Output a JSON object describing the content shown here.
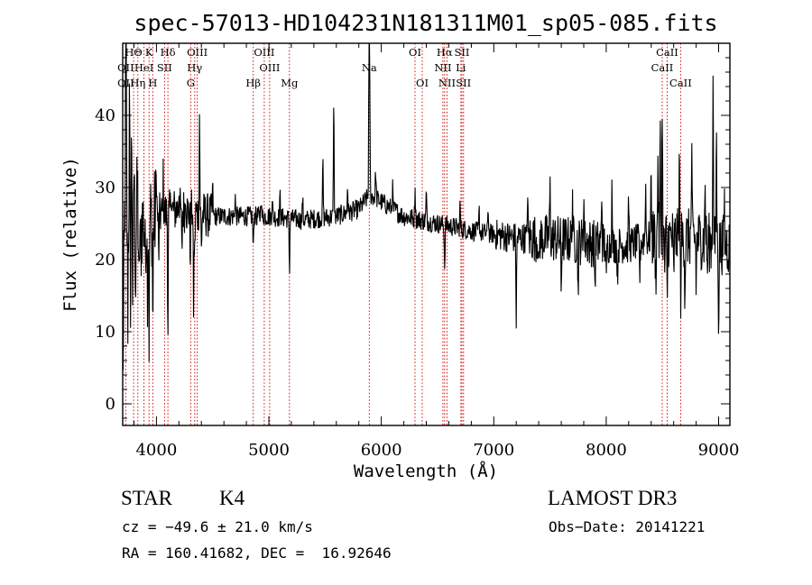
{
  "chart_data": {
    "type": "line",
    "title": "spec-57013-HD104231N181311M01_sp05-085.fits",
    "xlabel": "Wavelength (Å)",
    "ylabel": "Flux (relative)",
    "xlim": [
      3700,
      9100
    ],
    "ylim": [
      -3,
      50
    ],
    "x_ticks": [
      4000,
      5000,
      6000,
      7000,
      8000,
      9000
    ],
    "y_ticks": [
      0,
      10,
      20,
      30,
      40
    ],
    "series": [
      {
        "name": "spectrum",
        "continuum": [
          [
            3700,
            26
          ],
          [
            3850,
            25
          ],
          [
            4000,
            26
          ],
          [
            4200,
            27
          ],
          [
            4500,
            26
          ],
          [
            5000,
            26
          ],
          [
            5300,
            25.5
          ],
          [
            5600,
            26
          ],
          [
            5800,
            27
          ],
          [
            5900,
            29
          ],
          [
            6000,
            28
          ],
          [
            6200,
            26
          ],
          [
            6500,
            25
          ],
          [
            6800,
            24
          ],
          [
            7000,
            23.5
          ],
          [
            7200,
            23
          ],
          [
            7500,
            23
          ],
          [
            7800,
            22.5
          ],
          [
            8000,
            22
          ],
          [
            8200,
            22
          ],
          [
            8400,
            23
          ],
          [
            8600,
            23
          ],
          [
            8800,
            23
          ],
          [
            9000,
            22
          ],
          [
            9100,
            22
          ]
        ],
        "features": [
          [
            3705,
            -20
          ],
          [
            3712,
            -8
          ],
          [
            3725,
            10
          ],
          [
            3730,
            20
          ],
          [
            3745,
            -12
          ],
          [
            3760,
            14
          ],
          [
            3768,
            -10
          ],
          [
            3780,
            12
          ],
          [
            3790,
            -14
          ],
          [
            3800,
            8
          ],
          [
            3815,
            -8
          ],
          [
            3830,
            6
          ],
          [
            3845,
            -12
          ],
          [
            3860,
            -6
          ],
          [
            3900,
            -6
          ],
          [
            3920,
            -8
          ],
          [
            3935,
            -16
          ],
          [
            3968,
            -15
          ],
          [
            4000,
            6
          ],
          [
            4020,
            -6
          ],
          [
            4060,
            5
          ],
          [
            4102,
            -16
          ],
          [
            4130,
            4
          ],
          [
            4200,
            3
          ],
          [
            4226,
            -6
          ],
          [
            4260,
            3
          ],
          [
            4300,
            -6
          ],
          [
            4330,
            -13
          ],
          [
            4340,
            -6
          ],
          [
            4383,
            14
          ],
          [
            4400,
            -5
          ],
          [
            4500,
            4
          ],
          [
            4700,
            3
          ],
          [
            4861,
            -5
          ],
          [
            4930,
            3
          ],
          [
            5030,
            3
          ],
          [
            5100,
            3
          ],
          [
            5183,
            -7
          ],
          [
            5300,
            3
          ],
          [
            5480,
            8
          ],
          [
            5577,
            17
          ],
          [
            5700,
            4
          ],
          [
            5890,
            17
          ],
          [
            5896,
            20
          ],
          [
            5950,
            4
          ],
          [
            6100,
            3
          ],
          [
            6300,
            5
          ],
          [
            6400,
            4
          ],
          [
            6563,
            -6
          ],
          [
            6700,
            3
          ],
          [
            6870,
            3
          ],
          [
            6950,
            4
          ],
          [
            7200,
            -12
          ],
          [
            7300,
            6
          ],
          [
            7400,
            -6
          ],
          [
            7500,
            7
          ],
          [
            7600,
            -7
          ],
          [
            7700,
            7
          ],
          [
            7750,
            -7
          ],
          [
            7800,
            7
          ],
          [
            7900,
            -6
          ],
          [
            7960,
            8
          ],
          [
            8000,
            -6
          ],
          [
            8050,
            8
          ],
          [
            8100,
            -5
          ],
          [
            8200,
            6
          ],
          [
            8300,
            -5
          ],
          [
            8350,
            8
          ],
          [
            8400,
            10
          ],
          [
            8440,
            -6
          ],
          [
            8460,
            12
          ],
          [
            8480,
            14
          ],
          [
            8498,
            19
          ],
          [
            8520,
            -4
          ],
          [
            8542,
            -9
          ],
          [
            8600,
            -6
          ],
          [
            8650,
            11
          ],
          [
            8662,
            -8
          ],
          [
            8700,
            -8
          ],
          [
            8760,
            11
          ],
          [
            8800,
            -6
          ],
          [
            8880,
            8
          ],
          [
            8900,
            -5
          ],
          [
            8950,
            26
          ],
          [
            8980,
            16
          ],
          [
            9000,
            -10
          ],
          [
            9050,
            6
          ]
        ]
      }
    ],
    "line_markers": [
      {
        "label": "HΘ",
        "x": 3797,
        "row": 0,
        "dx": 0
      },
      {
        "label": "K",
        "x": 3934,
        "row": 0,
        "dx": 0
      },
      {
        "label": "Hδ",
        "x": 4102,
        "row": 0,
        "dx": 0
      },
      {
        "label": "OIII",
        "x": 4363,
        "row": 0,
        "dx": 0
      },
      {
        "label": "OIII",
        "x": 4959,
        "row": 0,
        "dx": 0
      },
      {
        "label": "OI",
        "x": 6300,
        "row": 0,
        "dx": 0
      },
      {
        "label": "Hα",
        "x": 6563,
        "row": 0,
        "dx": 0
      },
      {
        "label": "SII",
        "x": 6717,
        "row": 0,
        "dx": 0
      },
      {
        "label": "CaII",
        "x": 8542,
        "row": 0,
        "dx": 0
      },
      {
        "label": "OII",
        "x": 3727,
        "row": 1,
        "dx": 0
      },
      {
        "label": "HeI",
        "x": 3889,
        "row": 1,
        "dx": 0
      },
      {
        "label": "SII",
        "x": 4072,
        "row": 1,
        "dx": 0
      },
      {
        "label": "Hγ",
        "x": 4340,
        "row": 1,
        "dx": 0
      },
      {
        "label": "OIII",
        "x": 5007,
        "row": 1,
        "dx": 0
      },
      {
        "label": "Na",
        "x": 5893,
        "row": 1,
        "dx": 0
      },
      {
        "label": "NII",
        "x": 6548,
        "row": 1,
        "dx": 0
      },
      {
        "label": "Li",
        "x": 6707,
        "row": 1,
        "dx": 0
      },
      {
        "label": "CaII",
        "x": 8498,
        "row": 1,
        "dx": 0
      },
      {
        "label": "OII",
        "x": 3727,
        "row": 2,
        "dx": 0
      },
      {
        "label": "Hη",
        "x": 3835,
        "row": 2,
        "dx": 0
      },
      {
        "label": "H",
        "x": 3968,
        "row": 2,
        "dx": 0
      },
      {
        "label": "G",
        "x": 4305,
        "row": 2,
        "dx": 0
      },
      {
        "label": "Hβ",
        "x": 4861,
        "row": 2,
        "dx": 0
      },
      {
        "label": "Mg",
        "x": 5183,
        "row": 2,
        "dx": 0
      },
      {
        "label": "OI",
        "x": 6364,
        "row": 2,
        "dx": 0
      },
      {
        "label": "NII",
        "x": 6584,
        "row": 2,
        "dx": 0
      },
      {
        "label": "SII",
        "x": 6731,
        "row": 2,
        "dx": 0
      },
      {
        "label": "CaII",
        "x": 8662,
        "row": 2,
        "dx": 0
      }
    ]
  },
  "footer": {
    "object_class": "STAR",
    "subclass": "K4",
    "survey": "LAMOST DR3",
    "cz": "cz = −49.6 ± 21.0 km/s",
    "obs_date": "Obs−Date: 20141221",
    "coords": "RA = 160.41682, DEC =  16.92646"
  },
  "colors": {
    "spectrum": "#000000",
    "marker_line": "#cc0000",
    "axes": "#000000"
  }
}
